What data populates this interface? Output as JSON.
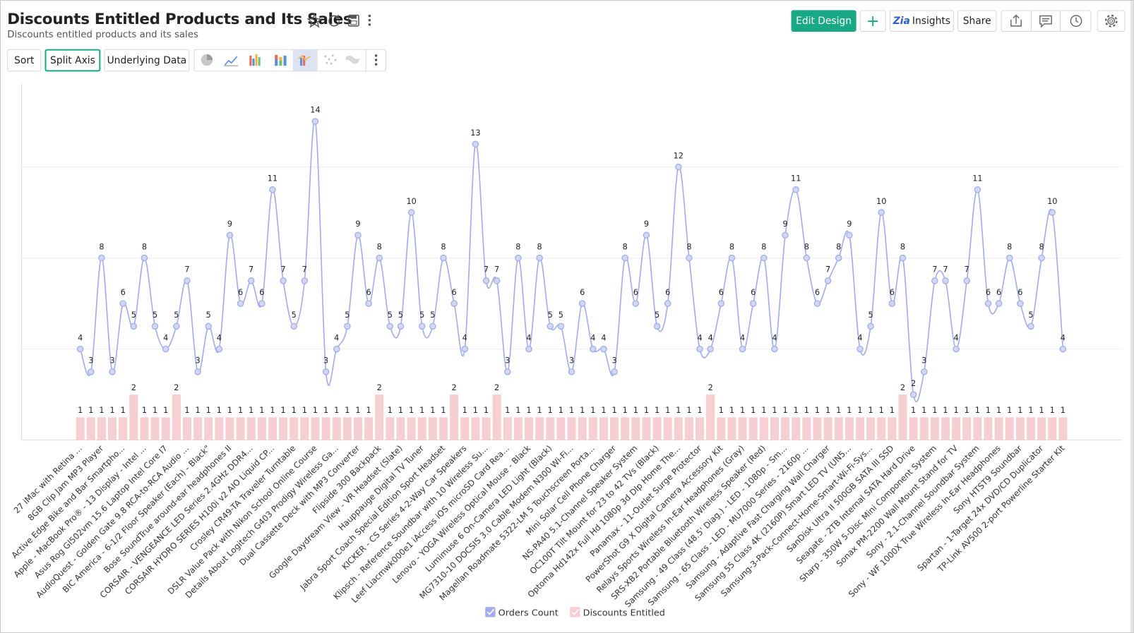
{
  "header": {
    "title": "Discounts Entitled Products and Its Sales",
    "subtitle": "Discounts entitled products and its sales",
    "actions": [
      "Edit Design",
      "Insights",
      "Share"
    ]
  },
  "toolbar": [
    "Sort",
    "Split Axis",
    "Underlying Data"
  ],
  "chart_data": {
    "type": "combo",
    "categories": [
      "27 iMac with Retina ...",
      null,
      "8GB Clip Jam MP3 Player",
      null,
      "Active Edge Bike and Bar Smartpho...",
      null,
      "Apple - MacBook Pro® - 13 Display - Intel ...",
      null,
      "Asus Rog Gl502vm 15.6 Laptop Intel Core I7",
      null,
      "AudioQuest - Golden Gate 9.8 RCA-to-RCA Audio ...",
      null,
      "BIC America - 6-1/2 Floor Speaker (Each) - Black\"",
      null,
      "Bose SoundTrue around-ear headphones II",
      null,
      "CORSAIR - VENGEANCE LED Series 2.4GHz DDR4...",
      null,
      "CORSAIR HYDRO SERIES H100i v2 AIO Liquid CP...",
      null,
      "Crosley CR49-TA Traveler Turntable",
      null,
      "DSLR Value Pack with Nikon School Online Course",
      null,
      "Details About Logitech G403 Prodigy Wireless Ga...",
      null,
      "Dual Cassette Deck with MP3 Converter",
      null,
      "Flipside 300 Backpack",
      null,
      "Google Daydream View - VR Headset (Slate)",
      null,
      "Hauppauge Digital TV Tuner",
      null,
      "Jabra Sport Coach Special Edition Sport Headset",
      null,
      "KICKER - CS Series 4-2-Way Car Speakers",
      null,
      "Klipsch - Reference Soundbar with 10 Wireless Su...",
      null,
      "Leef Liacmwk000e1 iAccess iOS microSD Card Rea...",
      null,
      "Lenovo - YOGA Wireless Optical Mouse - Black",
      null,
      "Lumimuse 6 On-Camera LED Light (Black)",
      null,
      "MG7310-10 DOCSIS 3.0 Cable Modem N300 Wi-Fi...",
      null,
      "Magellan Roadmate 5322-LM 5 Touchscreen Porta...",
      null,
      "Mini Solar Cell Phone Charger",
      null,
      "NS-PA40 5.1-Channel Speaker System",
      null,
      "OC100T Tilt Mount for 23 to 42 TVs (Black)",
      null,
      "Optoma Hd142x Full Hd 1080p 3d Dlp Home The...",
      null,
      "Panamax - 11-Outlet Surge Protector",
      null,
      "PowerShot G9 X Digital Camera Accessory Kit",
      null,
      "Relays Sports Wireless In-Ear Headphones (Gray)",
      null,
      "SRS-XB2 Portable Bluetooth Wireless Speaker (Red)",
      null,
      "Samsung - 49 Class (48.5' Diag.) - LED - 1080p - Sm...",
      null,
      "Samsung - 65 Class - LED - MU7000 Series - 2160p ...",
      null,
      "Samsung - Adaptive Fast Charging Wall Charger",
      null,
      "Samsung 55 Class 4K (2160P) Smart LED TV (UN5...",
      null,
      "Samsung-3-Pack-Connect-Home-Smart-Wi-Fi-Sys...",
      null,
      "SanDisk Ultra II 500GB SATA III SSD",
      null,
      "Seagate - 2TB Internal SATA Hard Drive",
      null,
      "Sharp - 350W 5-Disc Mini Component System",
      null,
      "Sonax PM-2200 Wall Mount Stand for TV",
      null,
      "Sony - 2.1-Channel Soundbar System",
      null,
      "Sony - WF 1000X True Wireless In-Ear Headphones",
      null,
      "Sony HTST9 Soundbar",
      null,
      "Spartan - 1-Target 24x DVD/CD Duplicator",
      null,
      "TP-Link AV500 2-port Powerline Starter Kit"
    ],
    "series": [
      {
        "name": "Orders Count",
        "type": "line",
        "color": "#a3acea",
        "values": [
          4,
          3,
          8,
          3,
          6,
          5,
          8,
          5,
          4,
          5,
          7,
          3,
          5,
          4,
          9,
          6,
          7,
          6,
          11,
          7,
          5,
          7,
          14,
          3,
          4,
          5,
          9,
          6,
          8,
          5,
          5,
          10,
          5,
          5,
          8,
          6,
          4,
          13,
          7,
          7,
          3,
          8,
          4,
          8,
          5,
          5,
          3,
          6,
          4,
          4,
          3,
          8,
          6,
          9,
          5,
          6,
          12,
          8,
          4,
          4,
          6,
          8,
          4,
          6,
          8,
          4,
          9,
          11,
          8,
          6,
          7,
          8,
          9,
          4,
          5,
          10,
          6,
          8,
          2,
          3,
          7,
          7,
          4,
          7,
          11,
          6,
          6,
          8,
          6,
          5,
          8,
          10,
          4
        ]
      },
      {
        "name": "Discounts Entitled",
        "type": "bar",
        "color": "#f6cfd3",
        "values": [
          1,
          1,
          1,
          1,
          1,
          2,
          1,
          1,
          1,
          2,
          1,
          1,
          1,
          1,
          1,
          1,
          1,
          1,
          1,
          1,
          1,
          1,
          1,
          1,
          1,
          1,
          1,
          1,
          2,
          1,
          1,
          1,
          1,
          1,
          1,
          2,
          1,
          1,
          1,
          2,
          1,
          1,
          1,
          1,
          1,
          1,
          1,
          1,
          1,
          1,
          1,
          1,
          1,
          1,
          1,
          1,
          1,
          1,
          1,
          2,
          1,
          1,
          1,
          1,
          1,
          1,
          1,
          1,
          1,
          1,
          1,
          1,
          1,
          1,
          1,
          1,
          1,
          2,
          1,
          1,
          1,
          1,
          1,
          1,
          1,
          1,
          1,
          1,
          1,
          1,
          1,
          1,
          1
        ]
      }
    ],
    "ylim": [
      0,
      16
    ],
    "yticks": [
      0,
      4,
      8,
      12
    ],
    "grid": true
  }
}
